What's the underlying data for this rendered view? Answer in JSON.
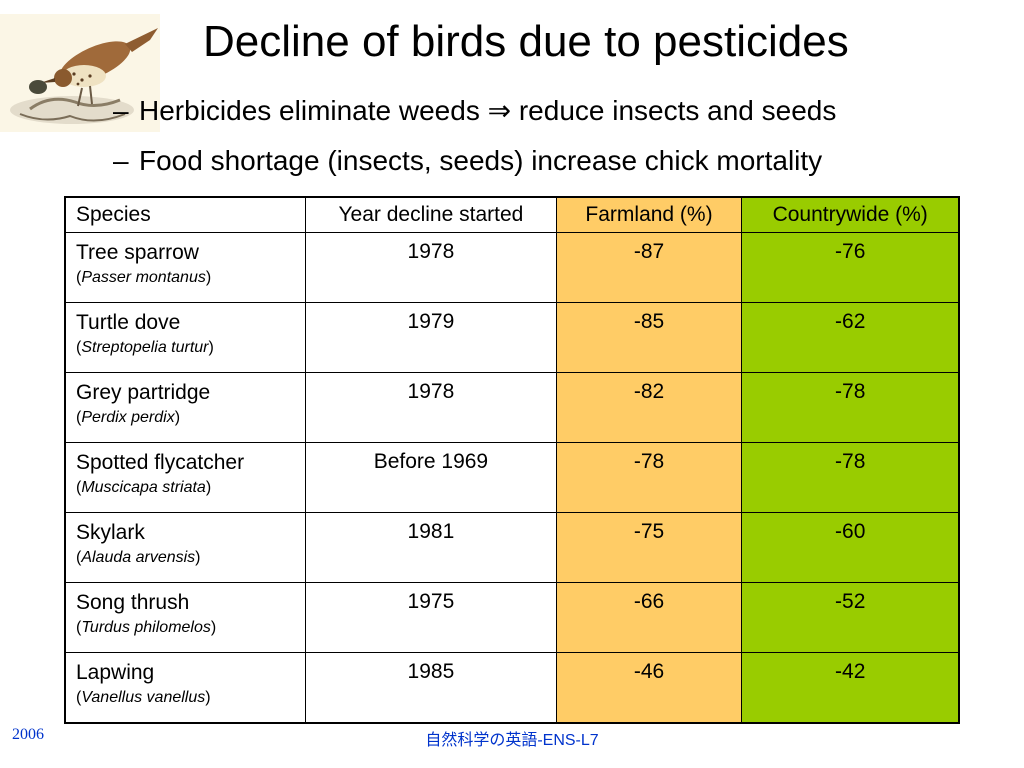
{
  "slide": {
    "title": "Decline of birds due to pesticides",
    "bullets": [
      {
        "dash": "–",
        "text": "Herbicides eliminate weeds ⇒ reduce insects and seeds"
      },
      {
        "dash": "–",
        "text": "Food shortage (insects, seeds) increase chick mortality"
      }
    ]
  },
  "table": {
    "headers": [
      "Species",
      "Year decline started",
      "Farmland (%)",
      "Countrywide (%)"
    ],
    "rows": [
      {
        "common": "Tree sparrow",
        "open": "(",
        "scientific": "Passer montanus",
        "close": ")",
        "year": "1978",
        "farmland": "-87",
        "countrywide": "-76"
      },
      {
        "common": "Turtle dove",
        "open": "(",
        "scientific": "Streptopelia turtur",
        "close": ")",
        "year": "1979",
        "farmland": "-85",
        "countrywide": "-62"
      },
      {
        "common": "Grey partridge",
        "open": "(",
        "scientific": "Perdix perdix",
        "close": ")",
        "year": "1978",
        "farmland": "-82",
        "countrywide": "-78"
      },
      {
        "common": "Spotted flycatcher",
        "open": "(",
        "scientific": "Muscicapa striata",
        "close": ")",
        "year": "Before 1969",
        "farmland": "-78",
        "countrywide": "-78"
      },
      {
        "common": "Skylark",
        "open": "(",
        "scientific": "Alauda arvensis",
        "close": ")",
        "year": "1981",
        "farmland": "-75",
        "countrywide": "-60"
      },
      {
        "common": "Song thrush",
        "open": "(",
        "scientific": "Turdus philomelos",
        "close": ")",
        "year": "1975",
        "farmland": "-66",
        "countrywide": "-52"
      },
      {
        "common": "Lapwing",
        "open": "(",
        "scientific": "Vanellus vanellus",
        "close": ")",
        "year": "1985",
        "farmland": "-46",
        "countrywide": "-42"
      }
    ],
    "colors": {
      "farmland": "#ffcc66",
      "countrywide": "#99cc00"
    }
  },
  "footer": {
    "left": "2006",
    "center": "自然科学の英語-ENS-L7",
    "color": "#0033cc"
  },
  "illustration": {
    "icon": "bird-illustration-icon"
  }
}
